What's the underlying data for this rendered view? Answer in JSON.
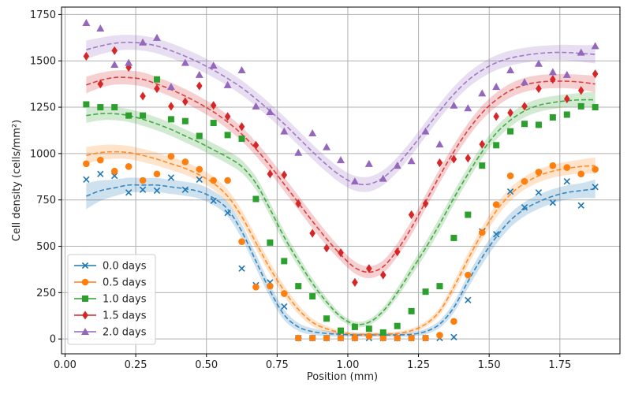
{
  "chart_data": {
    "type": "scatter",
    "title": "",
    "xlabel": "Position (mm)",
    "ylabel": "Cell density (cells/mm²)",
    "xlim": [
      -0.0125,
      1.9625
    ],
    "ylim": [
      -80,
      1790
    ],
    "xticks": [
      "0.00",
      "0.25",
      "0.50",
      "0.75",
      "1.00",
      "1.25",
      "1.50",
      "1.75"
    ],
    "yticks": [
      "0",
      "250",
      "500",
      "750",
      "1000",
      "1250",
      "1500",
      "1750"
    ],
    "grid": true,
    "legend_position": "lower-left",
    "x": [
      0.075,
      0.125,
      0.175,
      0.225,
      0.275,
      0.325,
      0.375,
      0.425,
      0.475,
      0.525,
      0.575,
      0.625,
      0.675,
      0.725,
      0.775,
      0.825,
      0.875,
      0.925,
      0.975,
      1.025,
      1.075,
      1.125,
      1.175,
      1.225,
      1.275,
      1.325,
      1.375,
      1.425,
      1.475,
      1.525,
      1.575,
      1.625,
      1.675,
      1.725,
      1.775,
      1.825,
      1.875
    ],
    "series": [
      {
        "name": "0.0 days",
        "color": "#1f77b4",
        "marker": "x",
        "values": [
          860,
          890,
          880,
          790,
          805,
          800,
          870,
          805,
          860,
          745,
          680,
          380,
          290,
          305,
          175,
          5,
          5,
          5,
          5,
          5,
          5,
          5,
          5,
          5,
          5,
          5,
          10,
          210,
          580,
          565,
          795,
          710,
          790,
          735,
          850,
          720,
          820
        ],
        "fit": [
          770,
          800,
          815,
          830,
          830,
          830,
          820,
          810,
          795,
          760,
          700,
          580,
          420,
          260,
          130,
          65,
          40,
          30,
          25,
          22,
          22,
          22,
          22,
          25,
          40,
          80,
          170,
          310,
          440,
          550,
          640,
          700,
          740,
          770,
          790,
          800,
          810
        ],
        "band": [
          70,
          55,
          45,
          40,
          38,
          38,
          38,
          38,
          38,
          38,
          38,
          38,
          38,
          35,
          28,
          22,
          18,
          15,
          12,
          10,
          10,
          10,
          10,
          12,
          15,
          20,
          28,
          35,
          38,
          38,
          38,
          38,
          38,
          38,
          38,
          40,
          50
        ]
      },
      {
        "name": "0.5 days",
        "color": "#ff7f0e",
        "marker": "o",
        "values": [
          945,
          965,
          905,
          930,
          855,
          890,
          985,
          955,
          915,
          855,
          855,
          525,
          280,
          285,
          245,
          5,
          5,
          5,
          5,
          5,
          15,
          5,
          5,
          5,
          5,
          20,
          95,
          345,
          575,
          725,
          880,
          850,
          900,
          935,
          925,
          890,
          915
        ],
        "fit": [
          990,
          1005,
          1010,
          1005,
          990,
          970,
          945,
          920,
          885,
          840,
          770,
          660,
          520,
          380,
          260,
          160,
          90,
          55,
          35,
          25,
          25,
          25,
          30,
          45,
          80,
          150,
          280,
          430,
          570,
          690,
          780,
          840,
          880,
          905,
          920,
          930,
          935
        ],
        "band": [
          45,
          40,
          38,
          36,
          35,
          35,
          35,
          35,
          35,
          35,
          35,
          35,
          35,
          33,
          30,
          25,
          20,
          16,
          12,
          10,
          10,
          10,
          10,
          12,
          15,
          20,
          28,
          33,
          35,
          35,
          35,
          35,
          35,
          35,
          36,
          38,
          45
        ]
      },
      {
        "name": "1.0 days",
        "color": "#2ca02c",
        "marker": "s",
        "values": [
          1265,
          1250,
          1250,
          1205,
          1205,
          1400,
          1185,
          1175,
          1095,
          1165,
          1100,
          1080,
          755,
          520,
          420,
          285,
          230,
          110,
          45,
          65,
          55,
          35,
          70,
          150,
          255,
          285,
          545,
          670,
          935,
          1045,
          1120,
          1160,
          1155,
          1195,
          1210,
          1255,
          1250
        ],
        "fit": [
          1205,
          1215,
          1215,
          1205,
          1185,
          1160,
          1130,
          1095,
          1060,
          1020,
          980,
          930,
          840,
          700,
          550,
          420,
          300,
          200,
          120,
          80,
          90,
          150,
          250,
          370,
          490,
          620,
          760,
          890,
          1010,
          1110,
          1180,
          1230,
          1260,
          1275,
          1285,
          1290,
          1290
        ],
        "band": [
          40,
          36,
          35,
          35,
          35,
          35,
          35,
          35,
          35,
          35,
          35,
          35,
          35,
          35,
          33,
          30,
          27,
          23,
          18,
          15,
          16,
          20,
          25,
          30,
          33,
          35,
          35,
          35,
          35,
          35,
          35,
          35,
          35,
          35,
          35,
          37,
          42
        ]
      },
      {
        "name": "1.5 days",
        "color": "#d62728",
        "marker": "d",
        "values": [
          1525,
          1375,
          1555,
          1465,
          1310,
          1350,
          1255,
          1280,
          1365,
          1260,
          1200,
          1145,
          1045,
          890,
          885,
          730,
          570,
          490,
          465,
          305,
          380,
          345,
          470,
          670,
          730,
          950,
          970,
          975,
          1050,
          1200,
          1220,
          1255,
          1350,
          1400,
          1295,
          1340,
          1430
        ],
        "fit": [
          1370,
          1395,
          1410,
          1410,
          1400,
          1375,
          1345,
          1310,
          1270,
          1225,
          1170,
          1105,
          1025,
          935,
          835,
          735,
          635,
          540,
          455,
          385,
          360,
          390,
          480,
          600,
          740,
          880,
          1010,
          1125,
          1220,
          1290,
          1340,
          1370,
          1385,
          1390,
          1390,
          1385,
          1375
        ],
        "band": [
          45,
          40,
          38,
          38,
          38,
          38,
          38,
          38,
          38,
          38,
          38,
          38,
          38,
          38,
          38,
          38,
          38,
          36,
          34,
          32,
          32,
          34,
          36,
          38,
          38,
          38,
          38,
          38,
          38,
          38,
          38,
          38,
          38,
          38,
          38,
          40,
          45
        ]
      },
      {
        "name": "2.0 days",
        "color": "#9467bd",
        "marker": "^",
        "values": [
          1705,
          1675,
          1480,
          1490,
          1600,
          1625,
          1360,
          1490,
          1425,
          1475,
          1370,
          1450,
          1255,
          1225,
          1120,
          1005,
          1110,
          1035,
          965,
          850,
          945,
          865,
          935,
          960,
          1120,
          1050,
          1260,
          1245,
          1325,
          1360,
          1450,
          1385,
          1485,
          1440,
          1425,
          1545,
          1580
        ],
        "fit": [
          1560,
          1580,
          1595,
          1600,
          1595,
          1580,
          1555,
          1525,
          1490,
          1450,
          1405,
          1355,
          1295,
          1230,
          1160,
          1085,
          1010,
          940,
          880,
          840,
          835,
          870,
          940,
          1030,
          1130,
          1230,
          1320,
          1395,
          1450,
          1490,
          1515,
          1530,
          1540,
          1545,
          1545,
          1540,
          1535
        ],
        "band": [
          50,
          45,
          42,
          40,
          40,
          40,
          40,
          40,
          40,
          40,
          40,
          40,
          40,
          40,
          40,
          40,
          40,
          40,
          40,
          40,
          40,
          40,
          40,
          40,
          40,
          40,
          40,
          40,
          40,
          40,
          40,
          40,
          40,
          40,
          42,
          45,
          50
        ]
      }
    ]
  }
}
